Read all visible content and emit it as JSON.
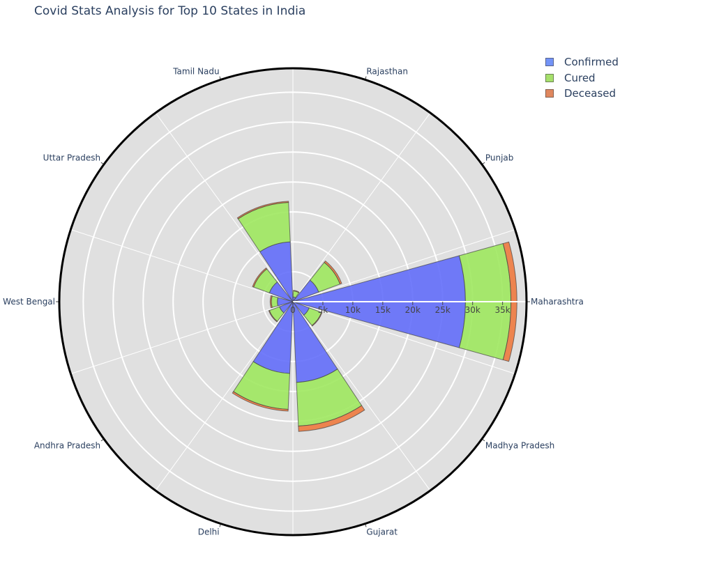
{
  "chart_data": {
    "type": "barpolar",
    "title": "Covid Stats Analysis for Top 10 States in India",
    "categories": [
      "Maharashtra",
      "Punjab",
      "Rajasthan",
      "Tamil Nadu",
      "Uttar Pradesh",
      "West Bengal",
      "Andhra Pradesh",
      "Delhi",
      "Gujarat",
      "Madhya Pradesh"
    ],
    "series": [
      {
        "name": "Confirmed",
        "values": [
          28800,
          4600,
          800,
          10000,
          4200,
          2600,
          2400,
          12000,
          13500,
          2900
        ],
        "color": "#636efa"
      },
      {
        "name": "Cured",
        "values": [
          7600,
          3800,
          1000,
          6600,
          2800,
          1000,
          1800,
          6000,
          7300,
          2200
        ],
        "color": "#9ee85f"
      },
      {
        "name": "Deceased",
        "values": [
          1000,
          300,
          100,
          200,
          200,
          200,
          100,
          300,
          900,
          100
        ],
        "color": "#ee7a3f"
      }
    ],
    "radial_ticks": [
      "0",
      "5k",
      "10k",
      "15k",
      "20k",
      "25k",
      "30k",
      "35k"
    ],
    "radial_tick_values": [
      0,
      5000,
      10000,
      15000,
      20000,
      25000,
      30000,
      35000
    ],
    "radial_range": [
      0,
      39000
    ],
    "barmode": "stack",
    "legend_position": "top-right",
    "grid": true
  },
  "legend": {
    "items": [
      {
        "label": "Confirmed",
        "color": "#7393f7"
      },
      {
        "label": "Cured",
        "color": "#a6e06b"
      },
      {
        "label": "Deceased",
        "color": "#e0875e"
      }
    ]
  }
}
